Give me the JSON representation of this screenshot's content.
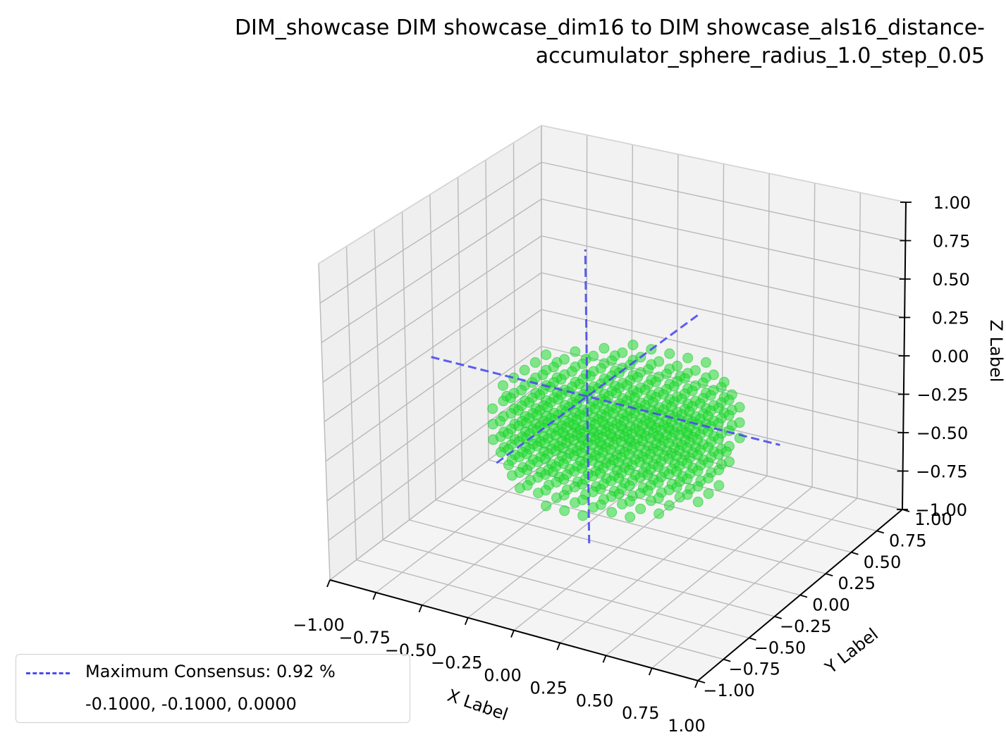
{
  "chart_data": {
    "type": "scatter",
    "projection": "3d",
    "title": "DIM_showcase DIM showcase_dim16 to DIM showcase_als16_distance-accumulator_sphere_radius_1.0_step_0.05",
    "title_lines": [
      "DIM_showcase DIM showcase_dim16 to DIM showcase_als16_distance-",
      "accumulator_sphere_radius_1.0_step_0.05"
    ],
    "xlabel": "X Label",
    "ylabel": "Y Label",
    "zlabel": "Z Label",
    "xlim": [
      -1.0,
      1.0
    ],
    "ylim": [
      -1.0,
      1.0
    ],
    "zlim": [
      -1.0,
      1.0
    ],
    "xticks": [
      "−1.00",
      "−0.75",
      "−0.50",
      "−0.25",
      "0.00",
      "0.25",
      "0.50",
      "0.75",
      "1.00"
    ],
    "yticks": [
      "−1.00",
      "−0.75",
      "−0.50",
      "−0.25",
      "0.00",
      "0.25",
      "0.50",
      "0.75",
      "1.00"
    ],
    "zticks": [
      "−1.00",
      "−0.75",
      "−0.50",
      "−0.25",
      "0.00",
      "0.25",
      "0.50",
      "0.75",
      "1.00"
    ],
    "grid": true,
    "points": {
      "color": "#22dd33",
      "shape": "sphere_slab",
      "center": [
        0.0,
        0.0,
        -0.2
      ],
      "radius": 0.6,
      "z_range": [
        -0.5,
        0.05
      ],
      "step": 0.05
    },
    "consensus_lines": {
      "color": "#4b4bf0",
      "center": [
        -0.1,
        -0.1,
        0.0
      ],
      "x_range": [
        -0.95,
        0.95
      ],
      "y_range": [
        -0.95,
        0.95
      ],
      "z_range": [
        -0.95,
        0.95
      ]
    },
    "legend": {
      "placement": "lower-left",
      "entries": [
        "Maximum Consensus: 0.92 %",
        "-0.1000, -0.1000, 0.0000"
      ]
    }
  }
}
